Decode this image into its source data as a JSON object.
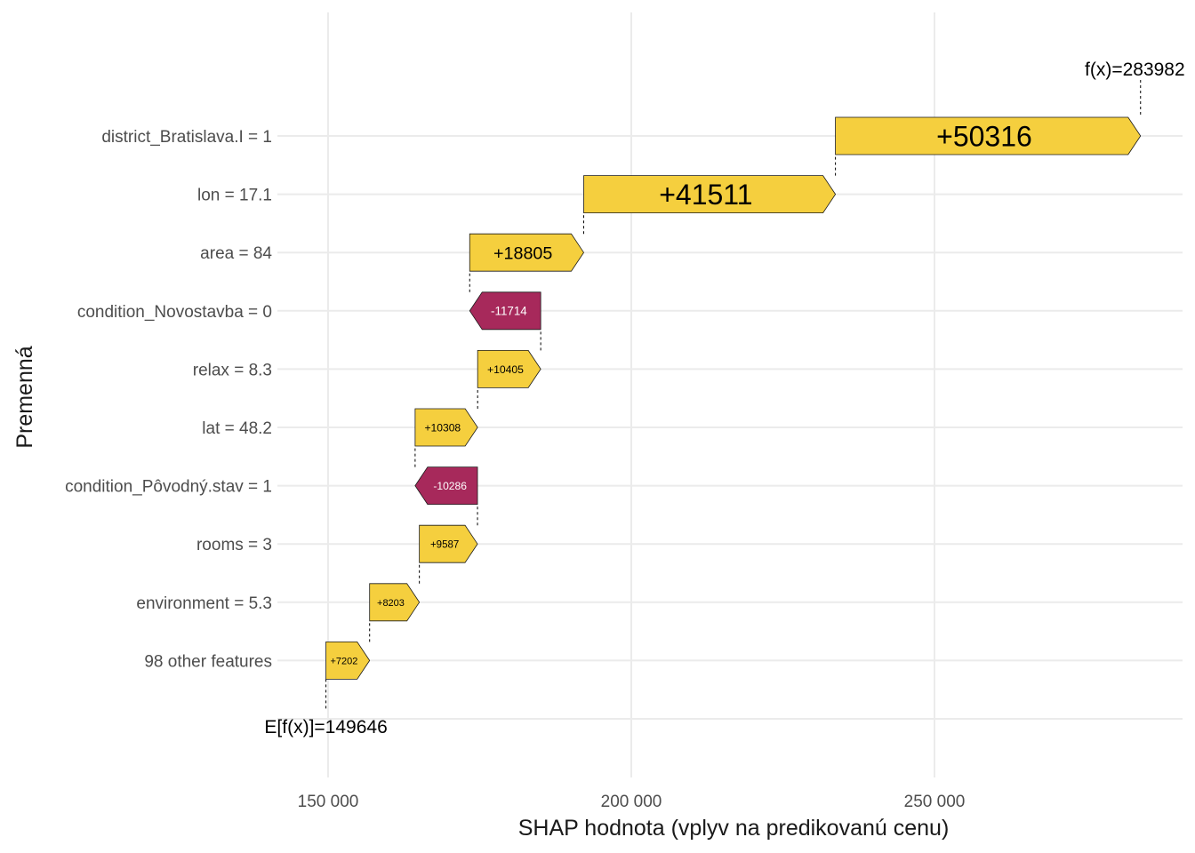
{
  "chart_data": {
    "type": "waterfall",
    "xlabel": "SHAP hodnota (vplyv na predikovanú cenu)",
    "ylabel": "Premenná",
    "xlim": [
      150000,
      290000
    ],
    "xticks": [
      150000,
      200000,
      250000
    ],
    "xtick_labels": [
      "150 000",
      "200 000",
      "250 000"
    ],
    "base_value": 149646,
    "base_label": "E[f(x)]=149646",
    "final_value": 283982,
    "final_label": "f(x)=283982",
    "colors": {
      "positive": "#F5CF3E",
      "negative": "#A7295B"
    },
    "rows": [
      {
        "feature": "district_Bratislava.I = 1",
        "value": 50316,
        "label": "+50316"
      },
      {
        "feature": "lon = 17.1",
        "value": 41511,
        "label": "+41511"
      },
      {
        "feature": "area = 84",
        "value": 18805,
        "label": "+18805"
      },
      {
        "feature": "condition_Novostavba = 0",
        "value": -11714,
        "label": "-11714"
      },
      {
        "feature": "relax = 8.3",
        "value": 10405,
        "label": "+10405"
      },
      {
        "feature": "lat = 48.2",
        "value": 10308,
        "label": "+10308"
      },
      {
        "feature": "condition_Pôvodný.stav = 1",
        "value": -10286,
        "label": "-10286"
      },
      {
        "feature": "rooms = 3",
        "value": 9587,
        "label": "+9587"
      },
      {
        "feature": "environment = 5.3",
        "value": 8203,
        "label": "+8203"
      },
      {
        "feature": "98 other features",
        "value": 7202,
        "label": "+7202"
      }
    ]
  }
}
